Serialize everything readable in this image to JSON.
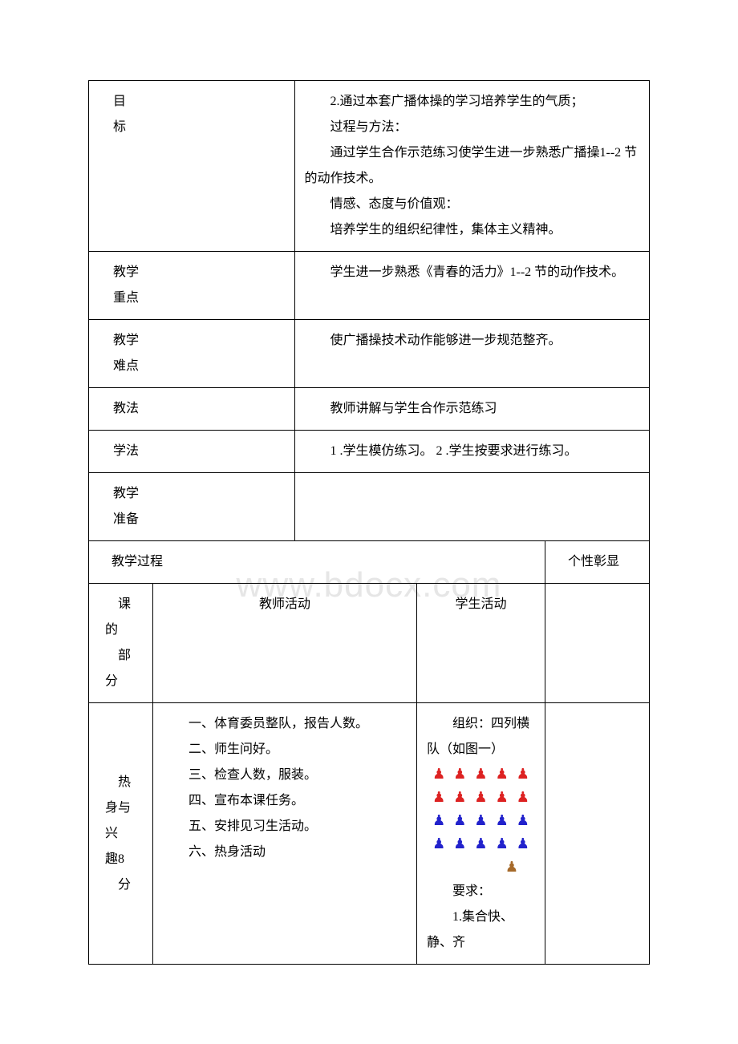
{
  "watermark": "www.bdocx.com",
  "goals": {
    "label1": "目",
    "label2": "标",
    "line1": "2.通过本套广播体操的学习培养学生的气质；",
    "line2": "过程与方法：",
    "line3": "通过学生合作示范练习使学生进一步熟悉广播操1--2 节的动作技术。",
    "line4": "情感、态度与价值观：",
    "line5": "培养学生的组织纪律性，集体主义精神。"
  },
  "keypoint": {
    "label1": "教学",
    "label2": "重点",
    "content": "学生进一步熟悉《青春的活力》1--2 节的动作技术。"
  },
  "difficulty": {
    "label1": "教学",
    "label2": "难点",
    "content": "使广播操技术动作能够进一步规范整齐。"
  },
  "teachmethod": {
    "label": "教法",
    "content": "教师讲解与学生合作示范练习"
  },
  "learnmethod": {
    "label": "学法",
    "content": "1 .学生模仿练习。 2 .学生按要求进行练习。"
  },
  "preparation": {
    "label1": "教学",
    "label2": "准备"
  },
  "process": {
    "header_left": "教学过程",
    "header_right": "个性彰显",
    "col_part1": "课",
    "col_part2": "的",
    "col_part3": "部",
    "col_part4": "分",
    "col_teacher": "教师活动",
    "col_student": "学生活动"
  },
  "warmup": {
    "label1": "热",
    "label2": "身与兴",
    "label3": "趣8",
    "label4": "分",
    "teacher1": "一、体育委员整队，报告人数。",
    "teacher2": "二、师生问好。",
    "teacher3": "三、检查人数，服装。",
    "teacher4": "四、宣布本课任务。",
    "teacher5": "五、安排见习生活动。",
    "teacher6": "六、热身活动",
    "student_org": "组织：四列横队（如图一）",
    "student_req_label": "要求：",
    "student_req1": "1.集合快、静、齐"
  },
  "colors": {
    "border": "#000000",
    "watermark": "#e6e6e6",
    "person_red": "#d22222",
    "person_blue": "#2222cc",
    "person_orange": "#a66a2a",
    "background": "#ffffff"
  },
  "formation": {
    "rows": 4,
    "cols": 5,
    "row_colors": [
      "red",
      "red",
      "blue",
      "blue"
    ],
    "teacher_color": "orange"
  }
}
